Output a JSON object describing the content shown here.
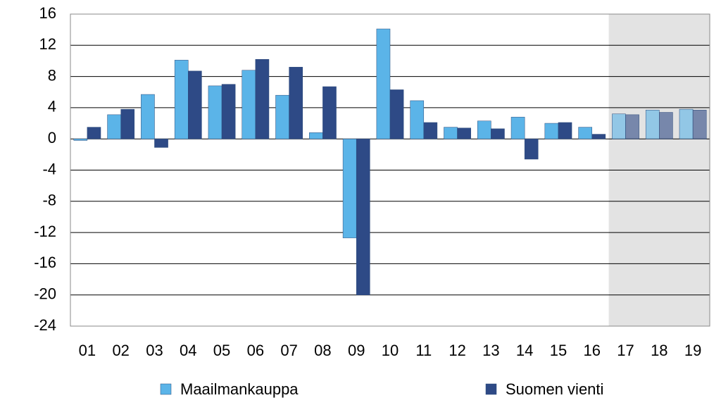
{
  "chart_data": {
    "type": "bar",
    "categories": [
      "01",
      "02",
      "03",
      "04",
      "05",
      "06",
      "07",
      "08",
      "09",
      "10",
      "11",
      "12",
      "13",
      "14",
      "15",
      "16",
      "17",
      "18",
      "19"
    ],
    "series": [
      {
        "name": "Maailmankauppa",
        "color": "#5bb4e8",
        "values": [
          -0.2,
          3.1,
          5.7,
          10.1,
          6.8,
          8.8,
          5.6,
          0.8,
          -12.7,
          14.1,
          4.9,
          1.5,
          2.3,
          2.8,
          2.0,
          1.5,
          3.2,
          3.7,
          3.8
        ]
      },
      {
        "name": "Suomen vienti",
        "color": "#2e4a86",
        "values": [
          1.5,
          3.8,
          -1.1,
          8.7,
          7.0,
          10.2,
          9.2,
          6.7,
          -20.0,
          6.3,
          2.1,
          1.4,
          1.3,
          -2.6,
          2.1,
          0.6,
          3.1,
          3.4,
          3.7
        ]
      }
    ],
    "ylim": [
      -24,
      16
    ],
    "yticks": [
      -24,
      -20,
      -16,
      -12,
      -8,
      -4,
      0,
      4,
      8,
      12,
      16
    ],
    "grid": true,
    "shaded_from": "17",
    "legend": "bottom"
  }
}
